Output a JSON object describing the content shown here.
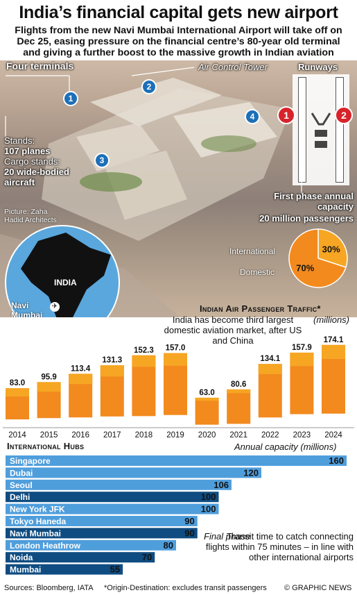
{
  "headline": "India’s financial capital gets new airport",
  "subhead": "Flights from the new Navi Mumbai International Airport will take off on Dec 25, easing pressure on the financial centre’s 80-year old terminal and giving a further boost to the massive growth in Indian aviation",
  "photo": {
    "terminals_label": "Four terminals",
    "tower_label": "Air Control Tower",
    "runways_label": "Runways",
    "terminal_markers": [
      "1",
      "2",
      "3",
      "4"
    ],
    "runway_markers": [
      "1",
      "2"
    ],
    "stands_text": "Stands:",
    "stands_value": "107 planes",
    "cargo_text": "Cargo stands:",
    "cargo_value": "20 wide-bodied aircraft",
    "picture_credit": "Picture: Zaha Hadid Architects",
    "capacity_label": "First phase annual capacity",
    "capacity_value": "20 million passengers",
    "map_country": "INDIA",
    "map_city": "Navi Mumbai",
    "pie": {
      "slices": [
        {
          "label": "International",
          "value": 30,
          "display": "30%",
          "color": "#f6a623"
        },
        {
          "label": "Domestic",
          "value": 70,
          "display": "70%",
          "color": "#f28a1e"
        }
      ]
    }
  },
  "chart_data": [
    {
      "type": "bar",
      "title": "Indian Air Passenger Traffic*",
      "ylabel": "(millions)",
      "note": "India has become third largest domestic aviation market, after US and China",
      "categories": [
        "2014",
        "2015",
        "2016",
        "2017",
        "2018",
        "2019",
        "2020",
        "2021",
        "2022",
        "2023",
        "2024"
      ],
      "values": [
        83.0,
        95.9,
        113.4,
        131.3,
        152.3,
        157.0,
        63.0,
        80.6,
        134.1,
        157.9,
        174.1
      ],
      "labels": [
        "83.0",
        "95.9",
        "113.4",
        "131.3",
        "152.3",
        "157.0",
        "63.0",
        "80.6",
        "134.1",
        "157.9",
        "174.1"
      ],
      "ylim": [
        0,
        180
      ],
      "colors": {
        "domestic": "#f28a1e",
        "international": "#f6a623"
      },
      "international_share": [
        0.21,
        0.21,
        0.19,
        0.18,
        0.16,
        0.17,
        0.1,
        0.1,
        0.16,
        0.18,
        0.17
      ]
    },
    {
      "type": "bar",
      "orientation": "horizontal",
      "title": "International Hubs",
      "ylabel": "Annual capacity (millions)",
      "categories": [
        "Singapore",
        "Dubai",
        "Seoul",
        "Delhi",
        "New York JFK",
        "Tokyo Haneda",
        "Navi Mumbai",
        "London Heathrow",
        "Noida",
        "Mumbai"
      ],
      "values": [
        160,
        120,
        106,
        100,
        100,
        90,
        90,
        80,
        70,
        55
      ],
      "highlight": [
        "Delhi",
        "Navi Mumbai",
        "Noida",
        "Mumbai"
      ],
      "colors": {
        "normal": "#4f9edc",
        "highlight": "#0f4c81"
      },
      "xlim": [
        0,
        160
      ]
    }
  ],
  "hubs_note_phase": "Final phase",
  "hubs_note_transit": "Transit time to catch connecting flights within 75 minutes – in line with other international airports",
  "footer": {
    "sources": "Sources: Bloomberg, IATA",
    "origin_note": "*Origin-Destination: excludes transit passengers",
    "credit": "© GRAPHIC NEWS"
  }
}
